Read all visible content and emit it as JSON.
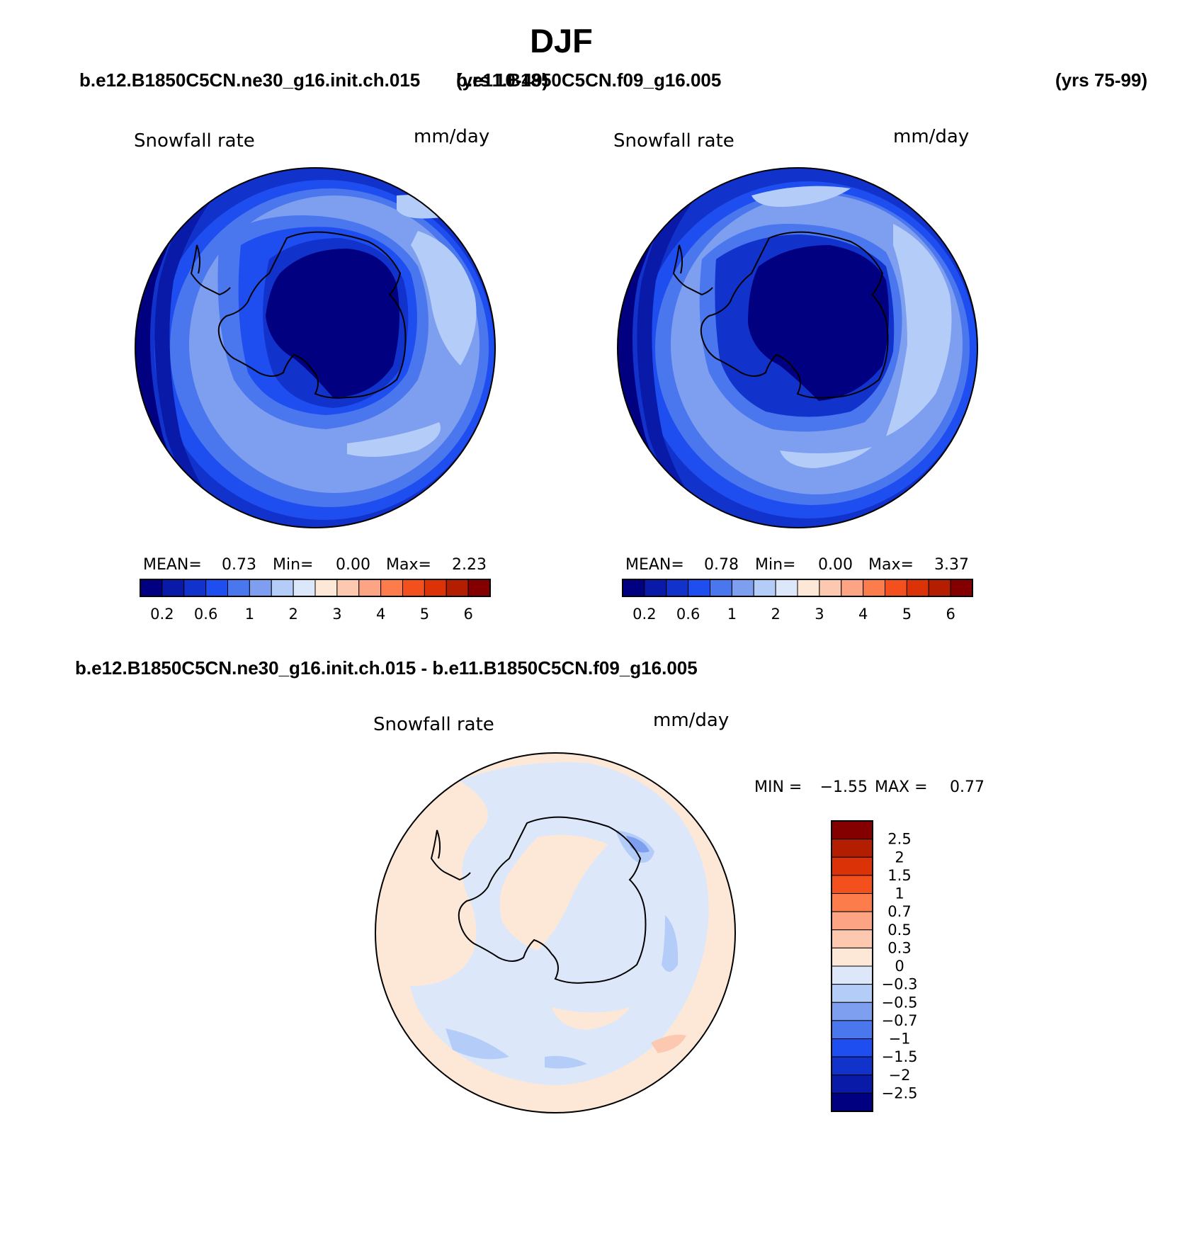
{
  "title": "DJF",
  "case_a": {
    "name": "b.e12.B1850C5CN.ne30_g16.init.ch.015",
    "years": "(yrs 10-49)"
  },
  "case_b": {
    "name": "b.e11.B1850C5CN.f09_g16.005",
    "years": "(yrs 75-99)"
  },
  "diff_title": "b.e12.B1850C5CN.ne30_g16.init.ch.015 - b.e11.B1850C5CN.f09_g16.005",
  "panels": [
    {
      "variable": "Snowfall rate",
      "units": "mm/day",
      "stats": {
        "mean_label": "MEAN=",
        "mean": "0.73",
        "min_label": "Min=",
        "min": "0.00",
        "max_label": "Max=",
        "max": "2.23"
      }
    },
    {
      "variable": "Snowfall rate",
      "units": "mm/day",
      "stats": {
        "mean_label": "MEAN=",
        "mean": "0.78",
        "min_label": "Min=",
        "min": "0.00",
        "max_label": "Max=",
        "max": "3.37"
      }
    },
    {
      "variable": "Snowfall rate",
      "units": "mm/day",
      "minmax": {
        "min_label": "MIN =",
        "min": "−1.55",
        "max_label": "MAX =",
        "max": "0.77"
      }
    }
  ],
  "abs_colorbar": {
    "colors": [
      "#000080",
      "#0a1aa8",
      "#1232cc",
      "#1e4ef0",
      "#4a76ee",
      "#7e9ef0",
      "#b4ccf8",
      "#dce8fa",
      "#fde8d8",
      "#fcc8b0",
      "#fca484",
      "#fc7c4c",
      "#f4501e",
      "#dc3208",
      "#b41e00",
      "#840000"
    ],
    "labels": [
      "0.2",
      "0.6",
      "1",
      "2",
      "3",
      "4",
      "5",
      "6"
    ]
  },
  "diff_colorbar": {
    "colors": [
      "#000080",
      "#0a1aa8",
      "#1232cc",
      "#1e4ef0",
      "#4a76ee",
      "#7e9ef0",
      "#b4ccf8",
      "#dce8fa",
      "#fde8d8",
      "#fcc8b0",
      "#fca484",
      "#fc7c4c",
      "#f4501e",
      "#dc3208",
      "#b41e00",
      "#840000"
    ],
    "labels": [
      "−2.5",
      "−2",
      "−1.5",
      "−1",
      "−0.7",
      "−0.5",
      "−0.3",
      "0",
      "0.3",
      "0.5",
      "0.7",
      "1",
      "1.5",
      "2",
      "2.5"
    ]
  },
  "map_colors": {
    "c0": "#000080",
    "c1": "#0a1aa8",
    "c2": "#1232cc",
    "c3": "#1e4ef0",
    "c4": "#4a76ee",
    "c5": "#7e9ef0",
    "c6": "#b4ccf8",
    "c7": "#dce8fa",
    "w0": "#fde8d8",
    "w1": "#fcc8b0",
    "w2": "#fca484"
  }
}
